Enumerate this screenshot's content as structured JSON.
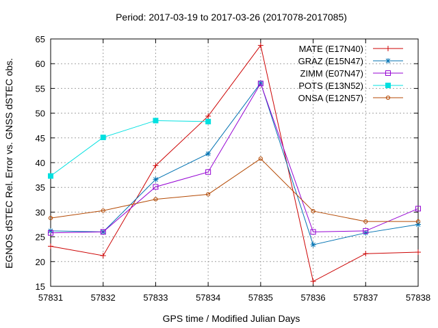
{
  "chart_data": {
    "type": "line",
    "title": "Period: 2017-03-19 to 2017-03-26 (2017078-2017085)",
    "xlabel": "GPS time / Modified Julian Days",
    "ylabel": "EGNOS dSTEC Rel. Error vs. GNSS dSTEC obs.",
    "xlim": [
      57831,
      57838
    ],
    "ylim": [
      15,
      65
    ],
    "xticks": [
      "57831",
      "57832",
      "57833",
      "57834",
      "57835",
      "57836",
      "57837",
      "57838"
    ],
    "yticks": [
      "15",
      "20",
      "25",
      "30",
      "35",
      "40",
      "45",
      "50",
      "55",
      "60",
      "65"
    ],
    "grid": true,
    "legend_position": "top-right",
    "x": [
      57831,
      57832,
      57833,
      57834,
      57835,
      57836,
      57837,
      57838
    ],
    "series": [
      {
        "name": "MATE (E17N40)",
        "color": "#cc0000",
        "marker": "plus",
        "values": [
          23.1,
          21.2,
          39.4,
          49.4,
          63.7,
          16.0,
          21.6,
          21.9
        ]
      },
      {
        "name": "GRAZ (E15N47)",
        "color": "#0072b2",
        "marker": "star",
        "values": [
          26.2,
          26.0,
          36.6,
          41.8,
          56.1,
          23.4,
          25.8,
          27.5
        ]
      },
      {
        "name": "ZIMM (E07N47)",
        "color": "#9400d3",
        "marker": "square-open",
        "values": [
          25.8,
          26.0,
          35.1,
          38.1,
          56.0,
          26.0,
          26.2,
          30.7
        ]
      },
      {
        "name": "POTS (E13N52)",
        "color": "#00e0e0",
        "marker": "square-filled",
        "values": [
          37.3,
          45.1,
          48.5,
          48.3,
          null,
          null,
          null,
          null
        ]
      },
      {
        "name": "ONSA (E12N57)",
        "color": "#b34700",
        "marker": "circle-open",
        "values": [
          28.8,
          30.3,
          32.6,
          33.6,
          40.8,
          30.2,
          28.1,
          28.1
        ]
      }
    ]
  }
}
